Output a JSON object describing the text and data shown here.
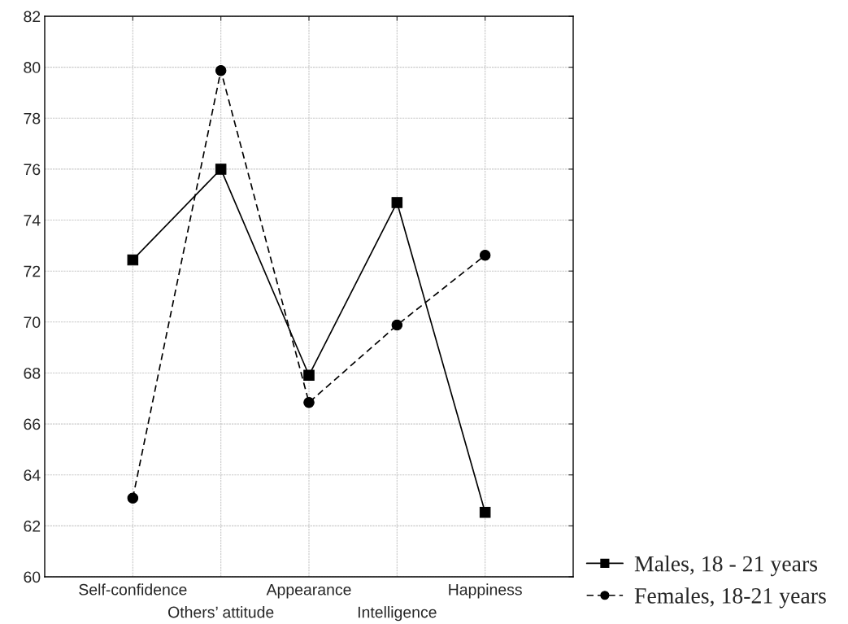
{
  "chart_data": {
    "type": "line",
    "categories": [
      "Self-confidence",
      "Others’ attitude",
      "Appearance",
      "Intelligence",
      "Happiness"
    ],
    "series": [
      {
        "name": "Males, 18 - 21 years",
        "color": "#000000",
        "values": [
          72.44,
          76.0,
          67.91,
          74.69,
          62.53
        ],
        "marker": "square",
        "line_style": "solid"
      },
      {
        "name": "Females, 18-21 years",
        "color": "#000000",
        "values": [
          63.09,
          79.87,
          66.84,
          69.88,
          72.62
        ],
        "marker": "circle",
        "line_style": "dashed"
      }
    ],
    "ylim": [
      60,
      82
    ],
    "yticks": [
      60,
      62,
      64,
      66,
      68,
      70,
      72,
      74,
      76,
      78,
      80,
      82
    ],
    "grid": true,
    "legend": "bottom right"
  }
}
